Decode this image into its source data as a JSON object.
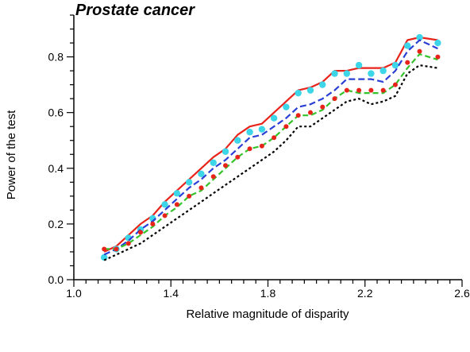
{
  "chart_data": {
    "type": "line",
    "title": "Prostate cancer",
    "xlabel": "Relative magnitude of disparity",
    "ylabel": "Power of the test",
    "xlim": [
      1.0,
      2.6
    ],
    "ylim": [
      0.0,
      0.95
    ],
    "xticks": [
      1.0,
      1.4,
      1.8,
      2.2,
      2.6
    ],
    "xtick_labels": [
      "1.0",
      "1.4",
      "1.8",
      "2.2",
      "2.6"
    ],
    "yticks": [
      0.0,
      0.2,
      0.4,
      0.6,
      0.8
    ],
    "ytick_labels": [
      "0.0",
      "0.2",
      "0.4",
      "0.6",
      "0.8"
    ],
    "grid": false,
    "x": [
      1.125,
      1.175,
      1.225,
      1.275,
      1.325,
      1.375,
      1.425,
      1.475,
      1.525,
      1.575,
      1.625,
      1.675,
      1.725,
      1.775,
      1.825,
      1.875,
      1.925,
      1.975,
      2.025,
      2.075,
      2.125,
      2.175,
      2.225,
      2.275,
      2.325,
      2.375,
      2.425,
      2.5
    ],
    "series": [
      {
        "style": "solid-red",
        "color": "#e8231a",
        "values": [
          0.1,
          0.12,
          0.16,
          0.2,
          0.23,
          0.28,
          0.32,
          0.36,
          0.4,
          0.44,
          0.47,
          0.52,
          0.55,
          0.56,
          0.6,
          0.64,
          0.68,
          0.69,
          0.71,
          0.75,
          0.75,
          0.76,
          0.76,
          0.76,
          0.78,
          0.86,
          0.87,
          0.86
        ]
      },
      {
        "style": "cyan-dots",
        "color": "#3dd6e8",
        "values": [
          0.08,
          0.11,
          0.15,
          0.18,
          0.22,
          0.27,
          0.31,
          0.35,
          0.38,
          0.42,
          0.46,
          0.5,
          0.53,
          0.54,
          0.58,
          0.62,
          0.67,
          0.68,
          0.7,
          0.74,
          0.74,
          0.77,
          0.74,
          0.75,
          0.77,
          0.84,
          0.87,
          0.85
        ]
      },
      {
        "style": "dashed-blue",
        "color": "#2a3fd6",
        "values": [
          0.09,
          0.11,
          0.14,
          0.18,
          0.21,
          0.25,
          0.29,
          0.33,
          0.36,
          0.4,
          0.43,
          0.47,
          0.51,
          0.52,
          0.55,
          0.58,
          0.62,
          0.63,
          0.65,
          0.68,
          0.72,
          0.72,
          0.72,
          0.71,
          0.75,
          0.82,
          0.86,
          0.83
        ]
      },
      {
        "style": "dashed-green",
        "color": "#35c22a",
        "values": [
          0.11,
          0.11,
          0.13,
          0.16,
          0.19,
          0.23,
          0.26,
          0.3,
          0.32,
          0.36,
          0.4,
          0.44,
          0.47,
          0.48,
          0.51,
          0.55,
          0.59,
          0.59,
          0.61,
          0.65,
          0.68,
          0.67,
          0.67,
          0.67,
          0.7,
          0.76,
          0.81,
          0.79
        ]
      },
      {
        "style": "red-dots",
        "color": "#e8231a",
        "values": [
          0.11,
          0.11,
          0.13,
          0.17,
          0.2,
          0.23,
          0.27,
          0.3,
          0.33,
          0.37,
          0.41,
          0.44,
          0.47,
          0.48,
          0.51,
          0.55,
          0.59,
          0.6,
          0.62,
          0.65,
          0.68,
          0.68,
          0.68,
          0.68,
          0.7,
          0.78,
          0.82,
          0.8
        ]
      },
      {
        "style": "dotted-black",
        "color": "#000000",
        "values": [
          0.07,
          0.09,
          0.11,
          0.13,
          0.16,
          0.19,
          0.22,
          0.25,
          0.28,
          0.31,
          0.34,
          0.37,
          0.4,
          0.43,
          0.46,
          0.5,
          0.55,
          0.55,
          0.58,
          0.61,
          0.64,
          0.65,
          0.63,
          0.64,
          0.66,
          0.74,
          0.77,
          0.76
        ]
      }
    ]
  }
}
